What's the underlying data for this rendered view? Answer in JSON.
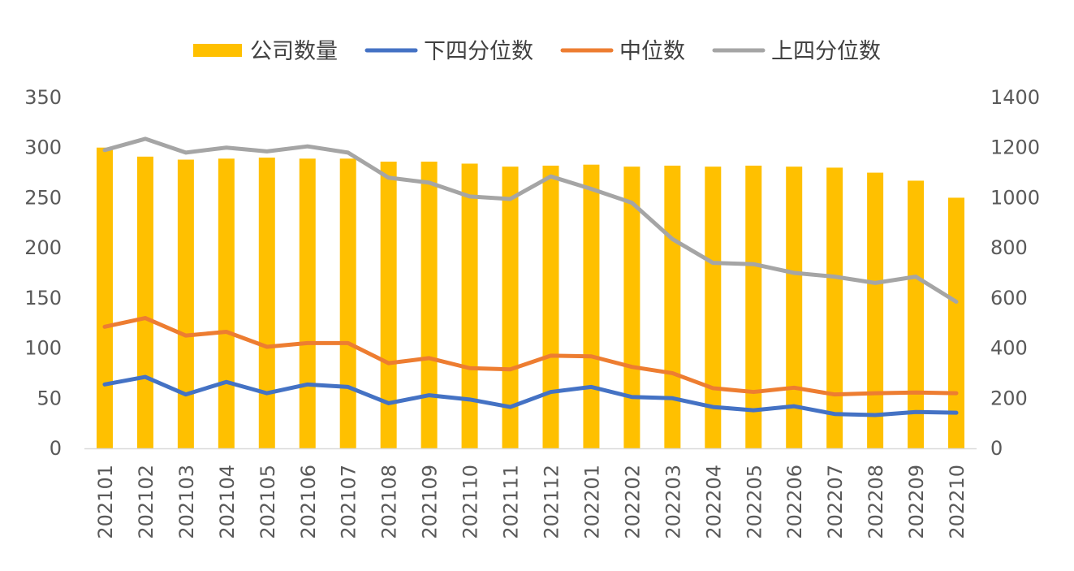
{
  "chart_data": {
    "type": "bar+line",
    "categories": [
      "202101",
      "202102",
      "202103",
      "202104",
      "202105",
      "202106",
      "202107",
      "202108",
      "202109",
      "202110",
      "202111",
      "202112",
      "202201",
      "202202",
      "202203",
      "202204",
      "202205",
      "202206",
      "202207",
      "202208",
      "202209",
      "202210"
    ],
    "series": [
      {
        "name": "公司数量",
        "type": "bar",
        "axis": "left",
        "color": "#FFC000",
        "values": [
          300,
          291,
          288,
          289,
          290,
          289,
          289,
          286,
          286,
          284,
          281,
          282,
          283,
          281,
          282,
          281,
          282,
          281,
          280,
          275,
          267,
          250
        ]
      },
      {
        "name": "下四分位数",
        "type": "line",
        "axis": "right",
        "color": "#4472C4",
        "values": [
          255,
          285,
          215,
          265,
          220,
          255,
          245,
          180,
          212,
          195,
          165,
          225,
          245,
          205,
          200,
          165,
          152,
          168,
          137,
          133,
          145,
          142
        ]
      },
      {
        "name": "中位数",
        "type": "line",
        "axis": "right",
        "color": "#ED7D31",
        "values": [
          485,
          520,
          450,
          465,
          405,
          420,
          420,
          340,
          360,
          320,
          315,
          370,
          367,
          325,
          300,
          240,
          225,
          242,
          215,
          220,
          223,
          220
        ]
      },
      {
        "name": "上四分位数",
        "type": "line",
        "axis": "right",
        "color": "#A5A5A5",
        "values": [
          1190,
          1235,
          1180,
          1200,
          1185,
          1205,
          1180,
          1080,
          1060,
          1005,
          995,
          1085,
          1035,
          980,
          835,
          740,
          735,
          700,
          685,
          660,
          685,
          585
        ]
      }
    ],
    "y_left": {
      "min": 0,
      "max": 350,
      "ticks": [
        "0",
        "50",
        "100",
        "150",
        "200",
        "250",
        "300",
        "350"
      ]
    },
    "y_right": {
      "min": 0,
      "max": 1400,
      "ticks": [
        "0",
        "200",
        "400",
        "600",
        "800",
        "1000",
        "1200",
        "1400"
      ]
    },
    "legend_position": "top",
    "grid": false,
    "x_tick_rotation": "vertical"
  }
}
